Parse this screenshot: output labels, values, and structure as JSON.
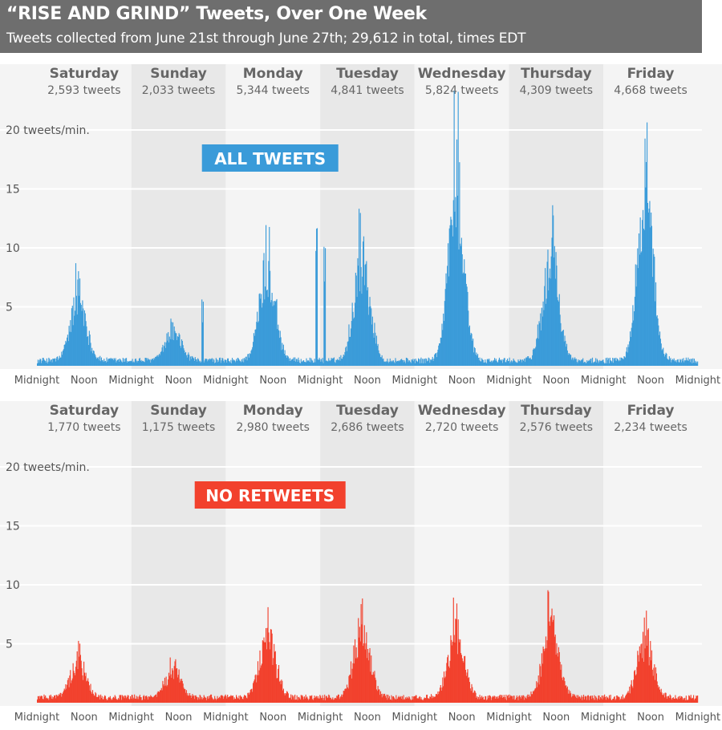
{
  "header": {
    "title": "“RISE AND GRIND” Tweets, Over One Week",
    "subtitle": "Tweets collected from June 21st through June 27th; 29,612 in total, times EDT"
  },
  "chart_data": [
    {
      "type": "bar",
      "banner": "ALL TWEETS",
      "banner_color": "#3a9bd9",
      "bar_color": "#3a9bd9",
      "y_unit_label": "20 tweets/min.",
      "yticks": [
        "5",
        "10",
        "15"
      ],
      "ylim": [
        0,
        22
      ],
      "days": [
        {
          "name": "Saturday",
          "count": "2,593 tweets"
        },
        {
          "name": "Sunday",
          "count": "2,033 tweets"
        },
        {
          "name": "Monday",
          "count": "5,344 tweets"
        },
        {
          "name": "Tuesday",
          "count": "4,841 tweets"
        },
        {
          "name": "Wednesday",
          "count": "5,824 tweets"
        },
        {
          "name": "Thursday",
          "count": "4,309 tweets"
        },
        {
          "name": "Friday",
          "count": "4,668 tweets"
        }
      ],
      "xticks": [
        "Midnight",
        "Noon",
        "Midnight",
        "Noon",
        "Midnight",
        "Noon",
        "Midnight",
        "Noon",
        "Midnight",
        "Noon",
        "Midnight",
        "Noon",
        "Midnight",
        "Noon",
        "Midnight"
      ],
      "peaks_per_day": [
        8.5,
        4.0,
        12.5,
        14.0,
        23.0,
        13.5,
        21.5
      ],
      "secondary_spikes": [
        {
          "day": 1,
          "hour": 18,
          "value": 5.8
        },
        {
          "day": 2,
          "hour": 23,
          "value": 11.8
        },
        {
          "day": 3,
          "hour": 1,
          "value": 10.5
        }
      ]
    },
    {
      "type": "bar",
      "banner": "NO RETWEETS",
      "banner_color": "#f2412d",
      "bar_color": "#f2412d",
      "y_unit_label": "20 tweets/min.",
      "yticks": [
        "5",
        "10",
        "15"
      ],
      "ylim": [
        0,
        22
      ],
      "days": [
        {
          "name": "Saturday",
          "count": "1,770 tweets"
        },
        {
          "name": "Sunday",
          "count": "1,175 tweets"
        },
        {
          "name": "Monday",
          "count": "2,980 tweets"
        },
        {
          "name": "Tuesday",
          "count": "2,686 tweets"
        },
        {
          "name": "Wednesday",
          "count": "2,720 tweets"
        },
        {
          "name": "Thursday",
          "count": "2,576 tweets"
        },
        {
          "name": "Friday",
          "count": "2,234 tweets"
        }
      ],
      "xticks": [
        "Midnight",
        "Noon",
        "Midnight",
        "Noon",
        "Midnight",
        "Noon",
        "Midnight",
        "Noon",
        "Midnight",
        "Noon",
        "Midnight",
        "Noon",
        "Midnight",
        "Noon",
        "Midnight"
      ],
      "peaks_per_day": [
        5.0,
        3.5,
        8.5,
        9.5,
        8.5,
        9.5,
        7.5
      ],
      "secondary_spikes": []
    }
  ]
}
